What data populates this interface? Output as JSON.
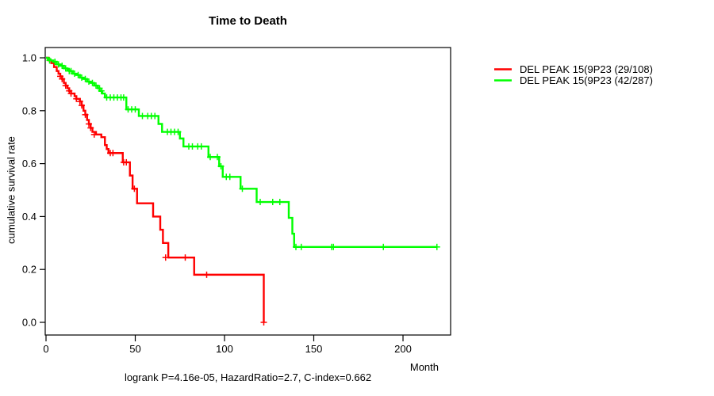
{
  "chart_data": {
    "type": "line",
    "subtype": "kaplan-meier-step",
    "title": "Time to Death",
    "xlabel": "Month",
    "ylabel": "cumulative survival rate",
    "footer": "logrank P=4.16e-05, HazardRatio=2.7, C-index=0.662",
    "xlim": [
      0,
      227
    ],
    "ylim": [
      0.0,
      1.0
    ],
    "grid": false,
    "legend_position": "right-outside",
    "xticks": [
      "0",
      "50",
      "100",
      "150",
      "200"
    ],
    "xtick_values": [
      0,
      50,
      100,
      150,
      200
    ],
    "yticks": [
      "0.0",
      "0.2",
      "0.4",
      "0.6",
      "0.8",
      "1.0"
    ],
    "ytick_values": [
      0,
      0.2,
      0.4,
      0.6,
      0.8,
      1.0
    ],
    "series": [
      {
        "name": "DEL PEAK 15(9P23 (29/108)",
        "color": "#ff0000",
        "steps": [
          [
            0,
            1.0
          ],
          [
            1.5,
            0.99
          ],
          [
            3,
            0.98
          ],
          [
            4.5,
            0.965
          ],
          [
            6,
            0.95
          ],
          [
            7,
            0.94
          ],
          [
            8,
            0.93
          ],
          [
            9,
            0.92
          ],
          [
            10,
            0.905
          ],
          [
            11,
            0.895
          ],
          [
            12,
            0.885
          ],
          [
            13,
            0.875
          ],
          [
            14,
            0.865
          ],
          [
            16,
            0.855
          ],
          [
            17,
            0.845
          ],
          [
            19,
            0.835
          ],
          [
            20,
            0.82
          ],
          [
            21,
            0.8
          ],
          [
            22,
            0.785
          ],
          [
            23,
            0.765
          ],
          [
            24,
            0.75
          ],
          [
            25,
            0.735
          ],
          [
            26,
            0.72
          ],
          [
            28,
            0.71
          ],
          [
            31,
            0.7
          ],
          [
            33,
            0.67
          ],
          [
            34,
            0.655
          ],
          [
            35,
            0.64
          ],
          [
            43,
            0.605
          ],
          [
            47,
            0.555
          ],
          [
            48.5,
            0.505
          ],
          [
            51,
            0.45
          ],
          [
            60,
            0.4
          ],
          [
            64,
            0.35
          ],
          [
            65.5,
            0.3
          ],
          [
            68.5,
            0.245
          ],
          [
            83,
            0.18
          ],
          [
            122,
            0.0
          ]
        ],
        "censors": [
          [
            8,
            0.93
          ],
          [
            9,
            0.92
          ],
          [
            11,
            0.895
          ],
          [
            13,
            0.875
          ],
          [
            14,
            0.865
          ],
          [
            17,
            0.845
          ],
          [
            19,
            0.835
          ],
          [
            20,
            0.82
          ],
          [
            22,
            0.785
          ],
          [
            24,
            0.75
          ],
          [
            25,
            0.735
          ],
          [
            27,
            0.71
          ],
          [
            36,
            0.64
          ],
          [
            37.5,
            0.64
          ],
          [
            43.5,
            0.605
          ],
          [
            45,
            0.605
          ],
          [
            49.5,
            0.505
          ],
          [
            67,
            0.245
          ],
          [
            78,
            0.245
          ],
          [
            90,
            0.18
          ],
          [
            122,
            0.0
          ]
        ]
      },
      {
        "name": "DEL PEAK 15(9P23 (42/287)",
        "color": "#00ff00",
        "steps": [
          [
            0,
            1.0
          ],
          [
            1,
            0.995
          ],
          [
            2.5,
            0.99
          ],
          [
            4,
            0.985
          ],
          [
            6,
            0.975
          ],
          [
            8,
            0.97
          ],
          [
            10,
            0.96
          ],
          [
            12,
            0.955
          ],
          [
            13,
            0.95
          ],
          [
            15,
            0.94
          ],
          [
            17,
            0.935
          ],
          [
            19,
            0.925
          ],
          [
            21,
            0.92
          ],
          [
            23,
            0.91
          ],
          [
            25,
            0.905
          ],
          [
            27,
            0.895
          ],
          [
            29,
            0.885
          ],
          [
            30,
            0.875
          ],
          [
            31.5,
            0.865
          ],
          [
            33,
            0.85
          ],
          [
            45,
            0.805
          ],
          [
            52,
            0.78
          ],
          [
            63,
            0.75
          ],
          [
            65,
            0.72
          ],
          [
            75,
            0.695
          ],
          [
            77,
            0.665
          ],
          [
            91,
            0.625
          ],
          [
            97,
            0.59
          ],
          [
            99,
            0.55
          ],
          [
            109,
            0.505
          ],
          [
            118,
            0.455
          ],
          [
            136,
            0.395
          ],
          [
            138,
            0.335
          ],
          [
            139,
            0.285
          ],
          [
            219,
            0.285
          ]
        ],
        "censors": [
          [
            2,
            0.99
          ],
          [
            5,
            0.985
          ],
          [
            7,
            0.975
          ],
          [
            9,
            0.97
          ],
          [
            11,
            0.96
          ],
          [
            13,
            0.95
          ],
          [
            14,
            0.95
          ],
          [
            16,
            0.94
          ],
          [
            18,
            0.935
          ],
          [
            20,
            0.925
          ],
          [
            22,
            0.92
          ],
          [
            24,
            0.91
          ],
          [
            26,
            0.905
          ],
          [
            28,
            0.895
          ],
          [
            30,
            0.885
          ],
          [
            31,
            0.875
          ],
          [
            34,
            0.85
          ],
          [
            36,
            0.85
          ],
          [
            38,
            0.85
          ],
          [
            40,
            0.85
          ],
          [
            42,
            0.85
          ],
          [
            43.5,
            0.85
          ],
          [
            46,
            0.805
          ],
          [
            48,
            0.805
          ],
          [
            50,
            0.805
          ],
          [
            54,
            0.78
          ],
          [
            57,
            0.78
          ],
          [
            59,
            0.78
          ],
          [
            61,
            0.78
          ],
          [
            68,
            0.72
          ],
          [
            70,
            0.72
          ],
          [
            72,
            0.72
          ],
          [
            74,
            0.72
          ],
          [
            80,
            0.665
          ],
          [
            82,
            0.665
          ],
          [
            85,
            0.665
          ],
          [
            87,
            0.665
          ],
          [
            92,
            0.625
          ],
          [
            96,
            0.625
          ],
          [
            98,
            0.59
          ],
          [
            101,
            0.55
          ],
          [
            103,
            0.55
          ],
          [
            110,
            0.505
          ],
          [
            120,
            0.455
          ],
          [
            127,
            0.455
          ],
          [
            131,
            0.455
          ],
          [
            140,
            0.285
          ],
          [
            143,
            0.285
          ],
          [
            160,
            0.285
          ],
          [
            161,
            0.285
          ],
          [
            189,
            0.285
          ],
          [
            219,
            0.285
          ]
        ]
      }
    ]
  }
}
